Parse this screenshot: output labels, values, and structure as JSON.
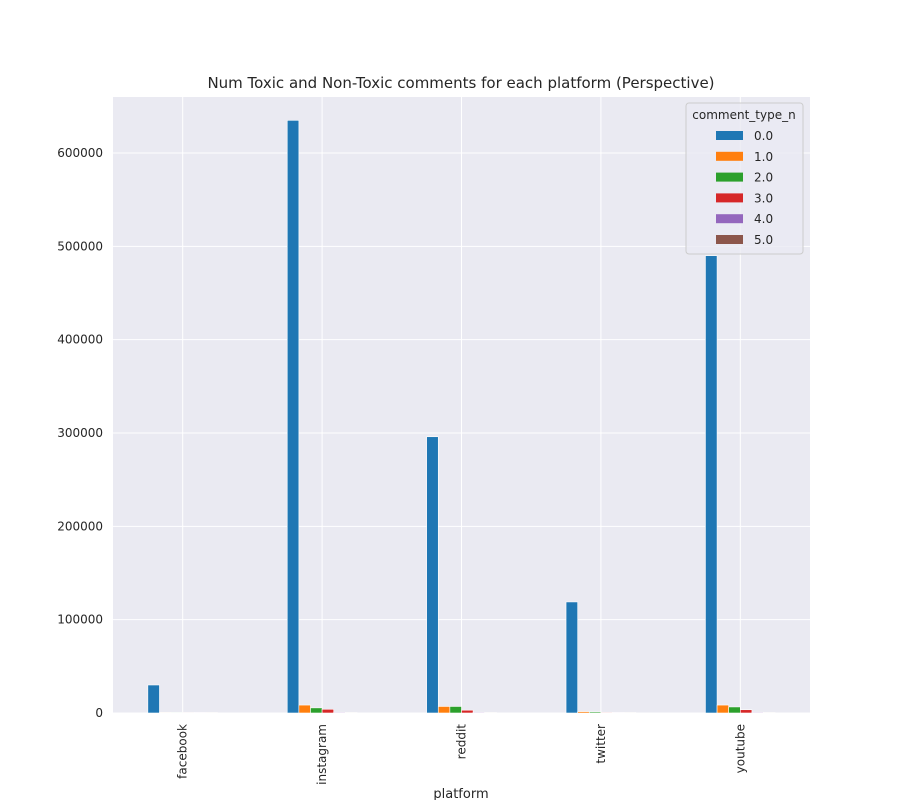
{
  "chart_data": {
    "type": "bar",
    "title": "Num Toxic and Non-Toxic comments for each platform (Perspective)",
    "xlabel": "platform",
    "ylabel": "",
    "categories": [
      "facebook",
      "instagram",
      "reddit",
      "twitter",
      "youtube"
    ],
    "ylim": [
      0,
      660000
    ],
    "yticks": [
      0,
      100000,
      200000,
      300000,
      400000,
      500000,
      600000
    ],
    "ytick_labels": [
      "0",
      "100000",
      "200000",
      "300000",
      "400000",
      "500000",
      "600000"
    ],
    "grid": true,
    "legend": {
      "title": "comment_type_n",
      "placement": "top-right"
    },
    "series": [
      {
        "name": "0.0",
        "color": "#1f77b4",
        "values": [
          30000,
          635000,
          296000,
          119000,
          490000
        ]
      },
      {
        "name": "1.0",
        "color": "#ff7f0e",
        "values": [
          500,
          8500,
          7000,
          1500,
          8500
        ]
      },
      {
        "name": "2.0",
        "color": "#2ca02c",
        "values": [
          300,
          5500,
          7000,
          1200,
          6500
        ]
      },
      {
        "name": "3.0",
        "color": "#d62728",
        "values": [
          200,
          4000,
          3000,
          700,
          3500
        ]
      },
      {
        "name": "4.0",
        "color": "#9467bd",
        "values": [
          100,
          800,
          800,
          300,
          800
        ]
      },
      {
        "name": "5.0",
        "color": "#8c564b",
        "values": [
          50,
          400,
          400,
          150,
          400
        ]
      }
    ]
  }
}
